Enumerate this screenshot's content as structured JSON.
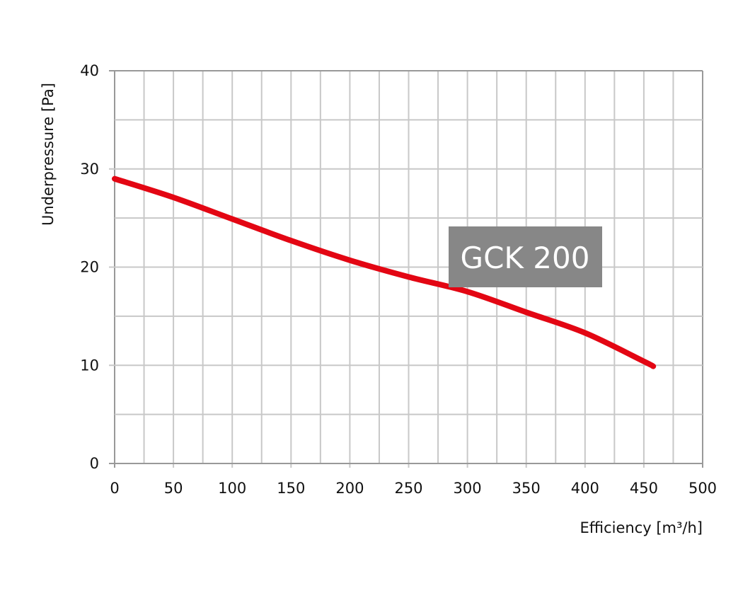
{
  "chart_data": {
    "type": "line",
    "xlabel": "Efficiency [m³/h]",
    "ylabel": "Underpressure [Pa]",
    "xlim": [
      0,
      500
    ],
    "ylim": [
      0,
      40
    ],
    "x_ticks": [
      "0",
      "50",
      "100",
      "150",
      "200",
      "250",
      "300",
      "350",
      "400",
      "450",
      "500"
    ],
    "y_ticks": [
      "0",
      "10",
      "20",
      "30",
      "40"
    ],
    "x_minor_step": 25,
    "y_minor_step": 5,
    "grid": true,
    "annotation": "GCK 200",
    "series": [
      {
        "color": "#e30613",
        "x": [
          0,
          50,
          100,
          150,
          200,
          250,
          300,
          350,
          400,
          450,
          458
        ],
        "y": [
          29,
          27.1,
          24.9,
          22.7,
          20.7,
          19.0,
          17.5,
          15.4,
          13.3,
          10.4,
          9.9
        ]
      }
    ],
    "colors": {
      "grid": "#c8c8c8",
      "axis": "#999999",
      "annotation_bg": "#878787",
      "annotation_text": "#ffffff"
    }
  }
}
